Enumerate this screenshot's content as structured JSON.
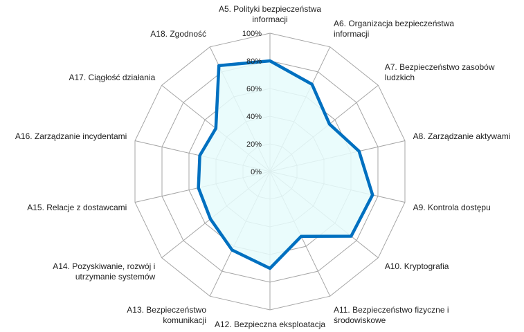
{
  "chart_data": {
    "type": "radar",
    "title": "",
    "categories": [
      "A5. Polityki bezpieczeństwa informacji",
      "A6. Organizacja bezpieczeństwa informacji",
      "A7. Bezpieczeństwo zasobów ludzkich",
      "A8. Zarządzanie aktywami",
      "A9. Kontrola dostępu",
      "A10. Kryptografia",
      "A11. Bezpieczeństwo fizyczne i środowiskowe",
      "A12. Bezpieczna eksploatacja",
      "A13. Bezpieczeństwo komunikacji",
      "A14. Pozyskiwanie, rozwój i utrzymanie systemów",
      "A15. Relacje z dostawcami",
      "A16. Zarządzanie incydentami",
      "A17. Ciągłość działania",
      "A18. Zgodność"
    ],
    "category_lines": [
      [
        "A5. Polityki bezpieczeństwa",
        "informacji"
      ],
      [
        "A6. Organizacja bezpieczeństwa",
        "informacji"
      ],
      [
        "A7. Bezpieczeństwo zasobów",
        "ludzkich"
      ],
      [
        "A8. Zarządzanie aktywami"
      ],
      [
        "A9. Kontrola dostępu"
      ],
      [
        "A10. Kryptografia"
      ],
      [
        "A11. Bezpieczeństwo fizyczne i",
        "środowiskowe"
      ],
      [
        "A12. Bezpieczna eksploatacja"
      ],
      [
        "A13. Bezpieczeństwo",
        "komunikacji"
      ],
      [
        "A14. Pozyskiwanie, rozwój i",
        "utrzymanie systemów"
      ],
      [
        "A15. Relacje z dostawcami"
      ],
      [
        "A16. Zarządzanie incydentami"
      ],
      [
        "A17. Ciągłość działania"
      ],
      [
        "A18. Zgodność"
      ]
    ],
    "series": [
      {
        "values": [
          80,
          70,
          55,
          66,
          76,
          75,
          52,
          70,
          63,
          55,
          53,
          52,
          50,
          85
        ],
        "line_color": "#0070C0",
        "fill_color": "#E6FBFC"
      }
    ],
    "rlim": [
      0,
      100
    ],
    "ticks": [
      0,
      20,
      40,
      60,
      80,
      100
    ],
    "tick_labels": [
      "0%",
      "20%",
      "40%",
      "60%",
      "80%",
      "100%"
    ],
    "grid": true,
    "grid_color": "#A6A6A6",
    "legend": "none"
  }
}
